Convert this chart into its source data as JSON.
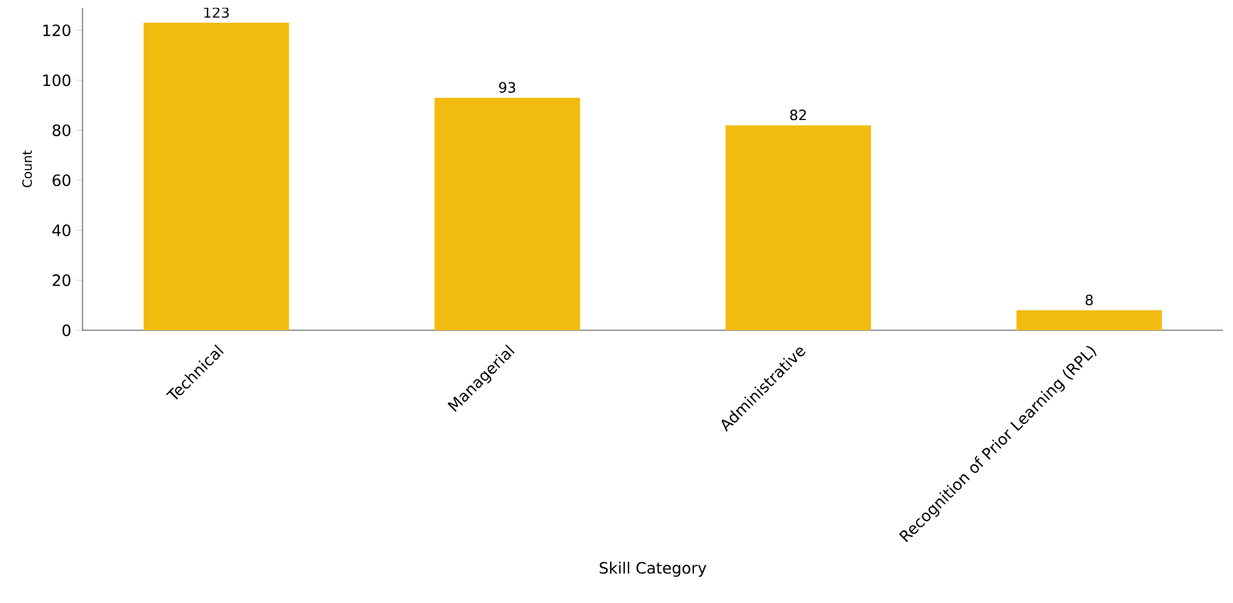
{
  "chart_data": {
    "type": "bar",
    "xlabel": "Skill Category",
    "ylabel": "Count",
    "categories": [
      "Technical",
      "Managerial",
      "Administrative",
      "Recognition of Prior Learning (RPL)"
    ],
    "values": [
      123,
      93,
      82,
      8
    ],
    "color": "#f2bb10",
    "ylim": [
      0,
      129
    ],
    "yticks": [
      0,
      20,
      40,
      60,
      80,
      100,
      120
    ],
    "data_labels": true
  }
}
